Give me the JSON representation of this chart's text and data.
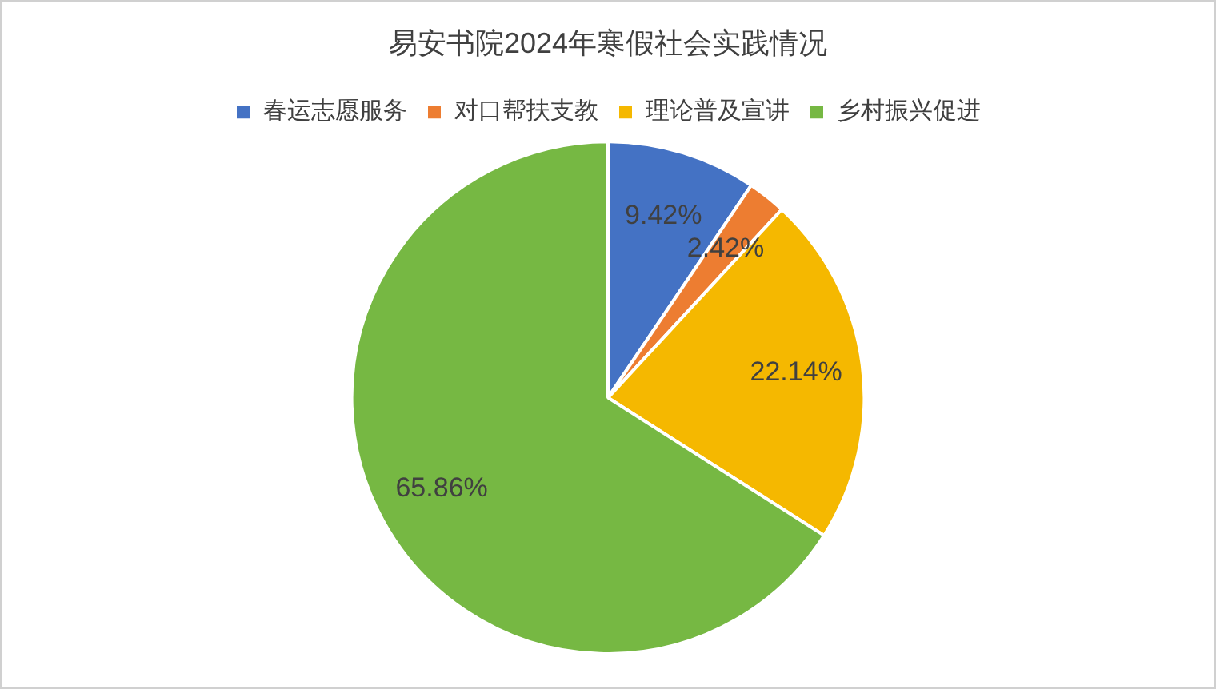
{
  "chart_data": {
    "type": "pie",
    "title": "易安书院2024年寒假社会实践情况",
    "categories": [
      "春运志愿服务",
      "对口帮扶支教",
      "理论普及宣讲",
      "乡村振兴促进"
    ],
    "values": [
      9.42,
      2.42,
      22.14,
      65.86
    ],
    "colors": [
      "#4472c4",
      "#ed7d31",
      "#f5b800",
      "#76b843"
    ],
    "value_labels": [
      "9.42%",
      "2.42%",
      "22.14%",
      "65.86%"
    ],
    "legend": "top"
  }
}
